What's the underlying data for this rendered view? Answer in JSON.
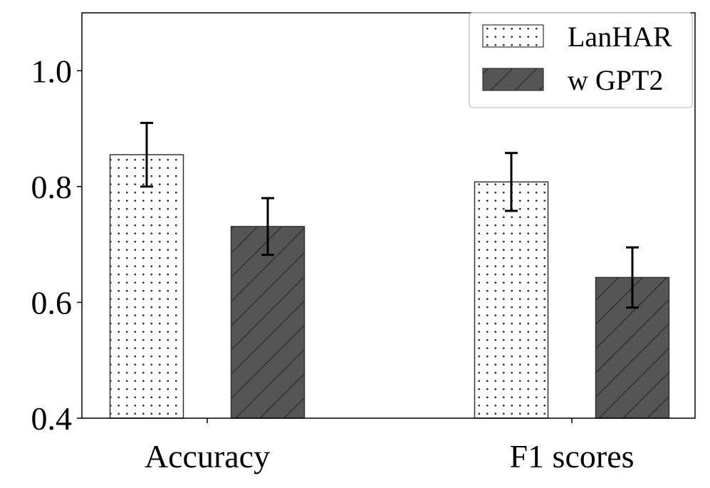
{
  "chart_data": {
    "type": "bar",
    "categories": [
      "Accuracy",
      "F1 scores"
    ],
    "series": [
      {
        "name": "LanHAR",
        "values": [
          0.855,
          0.808
        ],
        "errors": [
          0.055,
          0.05
        ],
        "color": "#ffffff",
        "hatch": "dots"
      },
      {
        "name": "w GPT2",
        "values": [
          0.731,
          0.643
        ],
        "errors": [
          0.049,
          0.052
        ],
        "color": "#555555",
        "hatch": "diagonal"
      }
    ],
    "ylim": [
      0.4,
      1.1
    ],
    "yticks": [
      "0.4",
      "0.6",
      "0.8",
      "1.0"
    ],
    "legend_position": "top-right",
    "grid": false
  }
}
